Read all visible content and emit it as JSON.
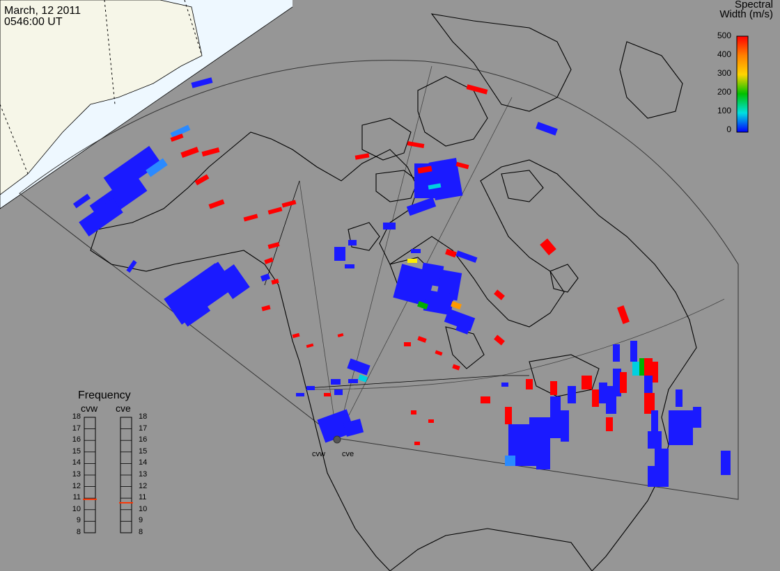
{
  "header": {
    "date": "March, 12 2011",
    "time": "0546:00 UT"
  },
  "colorbar": {
    "title_line1": "Spectral",
    "title_line2": "Width (m/s)",
    "ticks": [
      "500",
      "400",
      "300",
      "200",
      "100",
      "0"
    ],
    "gradient": [
      "#ff0000",
      "#ff8000",
      "#ffd400",
      "#00c000",
      "#00e0e0",
      "#0000ff"
    ]
  },
  "frequency": {
    "title": "Frequency",
    "columns": [
      "cvw",
      "cve"
    ],
    "ticks": [
      "18",
      "17",
      "16",
      "15",
      "14",
      "13",
      "12",
      "11",
      "10",
      "9",
      "8"
    ],
    "values_mhz": [
      10.9,
      10.6
    ],
    "marker_color": "#ff3300"
  },
  "sites": [
    "cvw",
    "cve"
  ],
  "colors": {
    "background": "#969696",
    "daylight": "#eef8ff",
    "land_day": "#f6f6e8",
    "coastline": "#000000",
    "low_width": "#1a1aff",
    "high_width": "#ff0000"
  }
}
